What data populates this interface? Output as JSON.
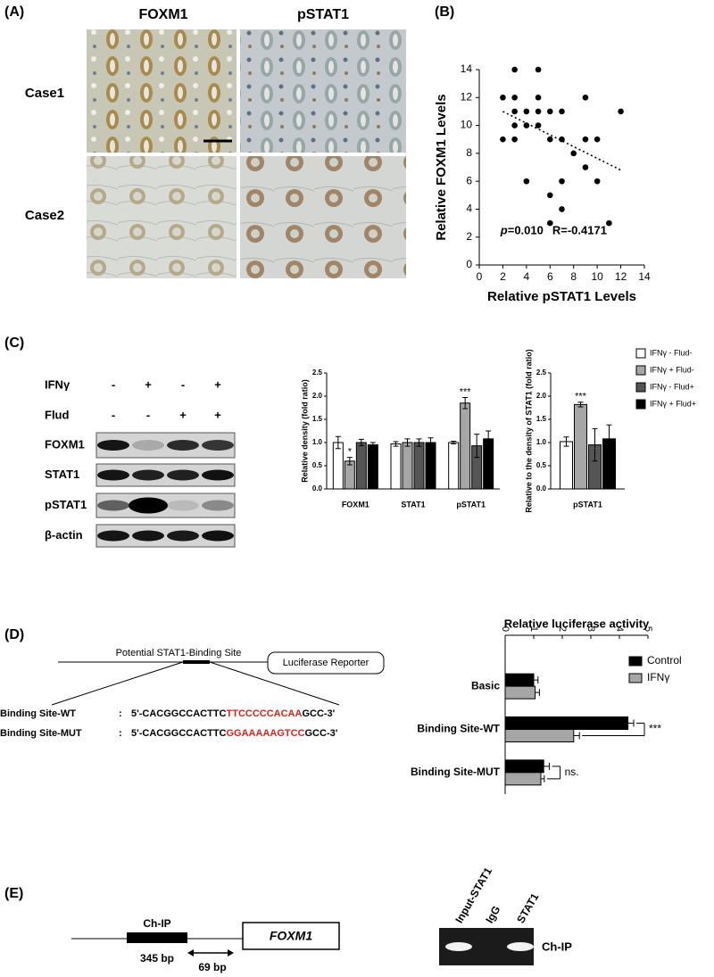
{
  "panel_A": {
    "label": "(A)",
    "columns": [
      "FOXM1",
      "pSTAT1"
    ],
    "rows": [
      "Case1",
      "Case2"
    ]
  },
  "panel_B": {
    "label": "(B)"
  },
  "panel_C": {
    "label": "(C)",
    "conditions": [
      {
        "name": "IFNγ",
        "signs": [
          "-",
          "+",
          "-",
          "+"
        ]
      },
      {
        "name": "Flud",
        "signs": [
          "-",
          "-",
          "+",
          "+"
        ]
      }
    ],
    "blots": [
      "FOXM1",
      "STAT1",
      "pSTAT1",
      "β-actin"
    ]
  },
  "panel_D": {
    "label": "(D)",
    "site": "Potential STAT1-Binding Site",
    "reporter": "Luciferase Reporter",
    "sequences": [
      {
        "name": "Binding Site-WT",
        "separator": ":",
        "prefix": "5'-CACGGCCACTTC",
        "core": "TTCCCCCACAA",
        "suffix": "GCC-3'"
      },
      {
        "name": "Binding Site-MUT",
        "separator": ":",
        "prefix": "5'-CACGGCCACTTC",
        "core": "GGAAAAAGTCC",
        "suffix": "GCC-3'"
      }
    ]
  },
  "panel_E": {
    "label": "(E)",
    "region": "Ch-IP",
    "gene": "FOXM1",
    "region_size": "345 bp",
    "distance": "69 bp",
    "lanes": [
      "Input-STAT1",
      "IgG",
      "STAT1"
    ],
    "gel_label": "Ch-IP"
  },
  "chart_data": [
    {
      "type": "scatter",
      "x_label": "Relative pSTAT1 Levels",
      "y_label": "Relative FOXM1 Levels",
      "x": [
        2,
        2,
        3,
        3,
        3,
        3,
        3,
        4,
        4,
        4,
        5,
        5,
        5,
        5,
        6,
        6,
        6,
        6,
        7,
        7,
        7,
        7,
        8,
        9,
        9,
        9,
        10,
        10,
        11,
        12
      ],
      "y": [
        12,
        9,
        14,
        12,
        11,
        10,
        9,
        11,
        10,
        6,
        14,
        12,
        11,
        10,
        11,
        9,
        5,
        3,
        11,
        9,
        6,
        4,
        8,
        12,
        9,
        7,
        9,
        6,
        3,
        11
      ],
      "color": "#000000",
      "trendline": {
        "x": [
          2,
          12
        ],
        "y": [
          11,
          6.8
        ]
      },
      "annotation": [
        "p",
        "=0.010",
        "R=-0.4171"
      ],
      "xlim": [
        0,
        14
      ],
      "ylim": [
        0,
        14
      ],
      "xticks": [
        0,
        2,
        4,
        6,
        8,
        10,
        12,
        14
      ],
      "yticks": [
        0,
        2,
        4,
        6,
        8,
        10,
        12,
        14
      ]
    },
    {
      "type": "bar",
      "y_label": "Relative density (fold ratio)",
      "categories": [
        "FOXM1",
        "STAT1",
        "pSTAT1"
      ],
      "series": [
        {
          "color": "#ffffff",
          "values": [
            1.0,
            0.97,
            1.0
          ],
          "errors": [
            0.13,
            0.05,
            0.03
          ]
        },
        {
          "color": "#a6a6a6",
          "values": [
            0.6,
            1.0,
            1.85
          ],
          "errors": [
            0.08,
            0.08,
            0.12
          ],
          "significance": [
            "*",
            null,
            "***"
          ]
        },
        {
          "color": "#555555",
          "values": [
            1.0,
            1.0,
            0.93
          ],
          "errors": [
            0.07,
            0.08,
            0.25
          ]
        },
        {
          "color": "#000000",
          "values": [
            0.95,
            1.0,
            1.08
          ],
          "errors": [
            0.05,
            0.1,
            0.17
          ]
        }
      ],
      "ylim": [
        0,
        2.5
      ],
      "yticks": [
        {
          "value": 0,
          "label": "0.0"
        },
        {
          "value": 0.5,
          "label": "0.5"
        },
        {
          "value": 1,
          "label": "1.0"
        },
        {
          "value": 1.5,
          "label": "1.5"
        },
        {
          "value": 2,
          "label": "2.0"
        },
        {
          "value": 2.5,
          "label": "2.5"
        }
      ]
    },
    {
      "type": "bar",
      "y_label": "Relative to the density of STAT1 (fold ratio)",
      "categories": [
        "pSTAT1"
      ],
      "series": [
        {
          "name": "IFNγ - Flud-",
          "color": "#ffffff",
          "values": [
            1.02
          ],
          "errors": [
            0.1
          ]
        },
        {
          "name": "IFNγ + Flud-",
          "color": "#a6a6a6",
          "values": [
            1.82
          ],
          "errors": [
            0.05
          ],
          "significance": [
            "***"
          ]
        },
        {
          "name": "IFNγ - Flud+",
          "color": "#555555",
          "values": [
            0.95
          ],
          "errors": [
            0.35
          ]
        },
        {
          "name": "IFNγ + Flud+",
          "color": "#000000",
          "values": [
            1.08
          ],
          "errors": [
            0.3
          ]
        }
      ],
      "ylim": [
        0,
        2.5
      ],
      "yticks": [
        {
          "value": 0,
          "label": "0.0"
        },
        {
          "value": 0.5,
          "label": "0.5"
        },
        {
          "value": 1,
          "label": "1.0"
        },
        {
          "value": 1.5,
          "label": "1.5"
        },
        {
          "value": 2,
          "label": "2.0"
        },
        {
          "value": 2.5,
          "label": "2.5"
        }
      ]
    },
    {
      "type": "barh",
      "title": "Relative luciferase activity",
      "categories": [
        "Basic",
        "Binding Site-WT",
        "Binding Site-MUT"
      ],
      "series": [
        {
          "name": "Control",
          "color": "#000000",
          "values": [
            1.0,
            4.3,
            1.35
          ],
          "errors": [
            0.15,
            0.2,
            0.2
          ]
        },
        {
          "name": "IFNγ",
          "color": "#a6a6a6",
          "values": [
            1.05,
            2.4,
            1.25
          ],
          "errors": [
            0.15,
            0.2,
            0.12
          ]
        }
      ],
      "comparisons": [
        null,
        "***",
        "ns."
      ],
      "xlim": [
        0,
        5
      ],
      "xticks": [
        0,
        1,
        2,
        3,
        4,
        5
      ]
    }
  ]
}
